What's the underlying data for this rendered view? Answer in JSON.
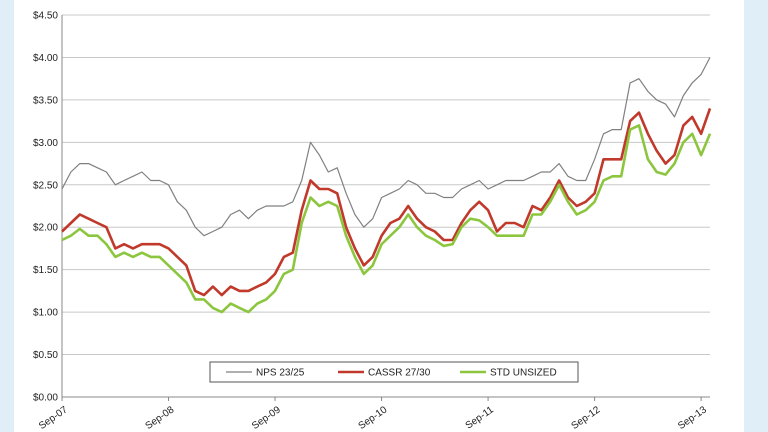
{
  "chart_data": {
    "type": "line",
    "title": "",
    "xlabel": "",
    "ylabel": "",
    "ylim": [
      0,
      4.5
    ],
    "y_ticks": [
      "$0.00",
      "$0.50",
      "$1.00",
      "$1.50",
      "$2.00",
      "$2.50",
      "$3.00",
      "$3.50",
      "$4.00",
      "$4.50"
    ],
    "x_ticks": [
      "Sep-07",
      "Sep-08",
      "Sep-09",
      "Sep-10",
      "Sep-11",
      "Sep-12",
      "Sep-13"
    ],
    "x_start": "Sep-07",
    "grid": "horizontal",
    "legend_position": "bottom-center",
    "series": [
      {
        "name": "NPS 23/25",
        "color": "#808080",
        "values": [
          2.45,
          2.65,
          2.75,
          2.75,
          2.7,
          2.65,
          2.5,
          2.55,
          2.6,
          2.65,
          2.55,
          2.55,
          2.5,
          2.3,
          2.2,
          2.0,
          1.9,
          1.95,
          2.0,
          2.15,
          2.2,
          2.1,
          2.2,
          2.25,
          2.25,
          2.25,
          2.3,
          2.55,
          3.0,
          2.85,
          2.65,
          2.7,
          2.4,
          2.15,
          2.0,
          2.1,
          2.35,
          2.4,
          2.45,
          2.55,
          2.5,
          2.4,
          2.4,
          2.35,
          2.35,
          2.45,
          2.5,
          2.55,
          2.45,
          2.5,
          2.55,
          2.55,
          2.55,
          2.6,
          2.65,
          2.65,
          2.75,
          2.6,
          2.55,
          2.55,
          2.8,
          3.1,
          3.15,
          3.15,
          3.7,
          3.75,
          3.6,
          3.5,
          3.45,
          3.3,
          3.55,
          3.7,
          3.8,
          4.0
        ]
      },
      {
        "name": "CASSR 27/30",
        "color": "#c0392b",
        "values": [
          1.95,
          2.05,
          2.15,
          2.1,
          2.05,
          2.0,
          1.75,
          1.8,
          1.75,
          1.8,
          1.8,
          1.8,
          1.75,
          1.65,
          1.55,
          1.25,
          1.2,
          1.3,
          1.2,
          1.3,
          1.25,
          1.25,
          1.3,
          1.35,
          1.45,
          1.65,
          1.7,
          2.2,
          2.55,
          2.45,
          2.45,
          2.4,
          2.0,
          1.75,
          1.55,
          1.65,
          1.9,
          2.05,
          2.1,
          2.25,
          2.1,
          2.0,
          1.95,
          1.85,
          1.85,
          2.05,
          2.2,
          2.3,
          2.2,
          1.95,
          2.05,
          2.05,
          2.0,
          2.25,
          2.2,
          2.35,
          2.55,
          2.35,
          2.25,
          2.3,
          2.4,
          2.8,
          2.8,
          2.8,
          3.25,
          3.35,
          3.1,
          2.9,
          2.75,
          2.85,
          3.2,
          3.3,
          3.1,
          3.4
        ]
      },
      {
        "name": "STD UNSIZED",
        "color": "#8cc63f",
        "values": [
          1.85,
          1.9,
          1.98,
          1.9,
          1.9,
          1.8,
          1.65,
          1.7,
          1.65,
          1.7,
          1.65,
          1.65,
          1.55,
          1.45,
          1.35,
          1.15,
          1.15,
          1.05,
          1.0,
          1.1,
          1.05,
          1.0,
          1.1,
          1.15,
          1.25,
          1.45,
          1.5,
          2.05,
          2.35,
          2.25,
          2.3,
          2.25,
          1.9,
          1.65,
          1.45,
          1.55,
          1.8,
          1.9,
          2.0,
          2.15,
          2.0,
          1.9,
          1.85,
          1.78,
          1.8,
          2.0,
          2.1,
          2.08,
          2.0,
          1.9,
          1.9,
          1.9,
          1.9,
          2.15,
          2.15,
          2.3,
          2.5,
          2.3,
          2.15,
          2.2,
          2.3,
          2.55,
          2.6,
          2.6,
          3.15,
          3.2,
          2.8,
          2.65,
          2.62,
          2.75,
          3.0,
          3.1,
          2.85,
          3.1
        ]
      }
    ]
  }
}
